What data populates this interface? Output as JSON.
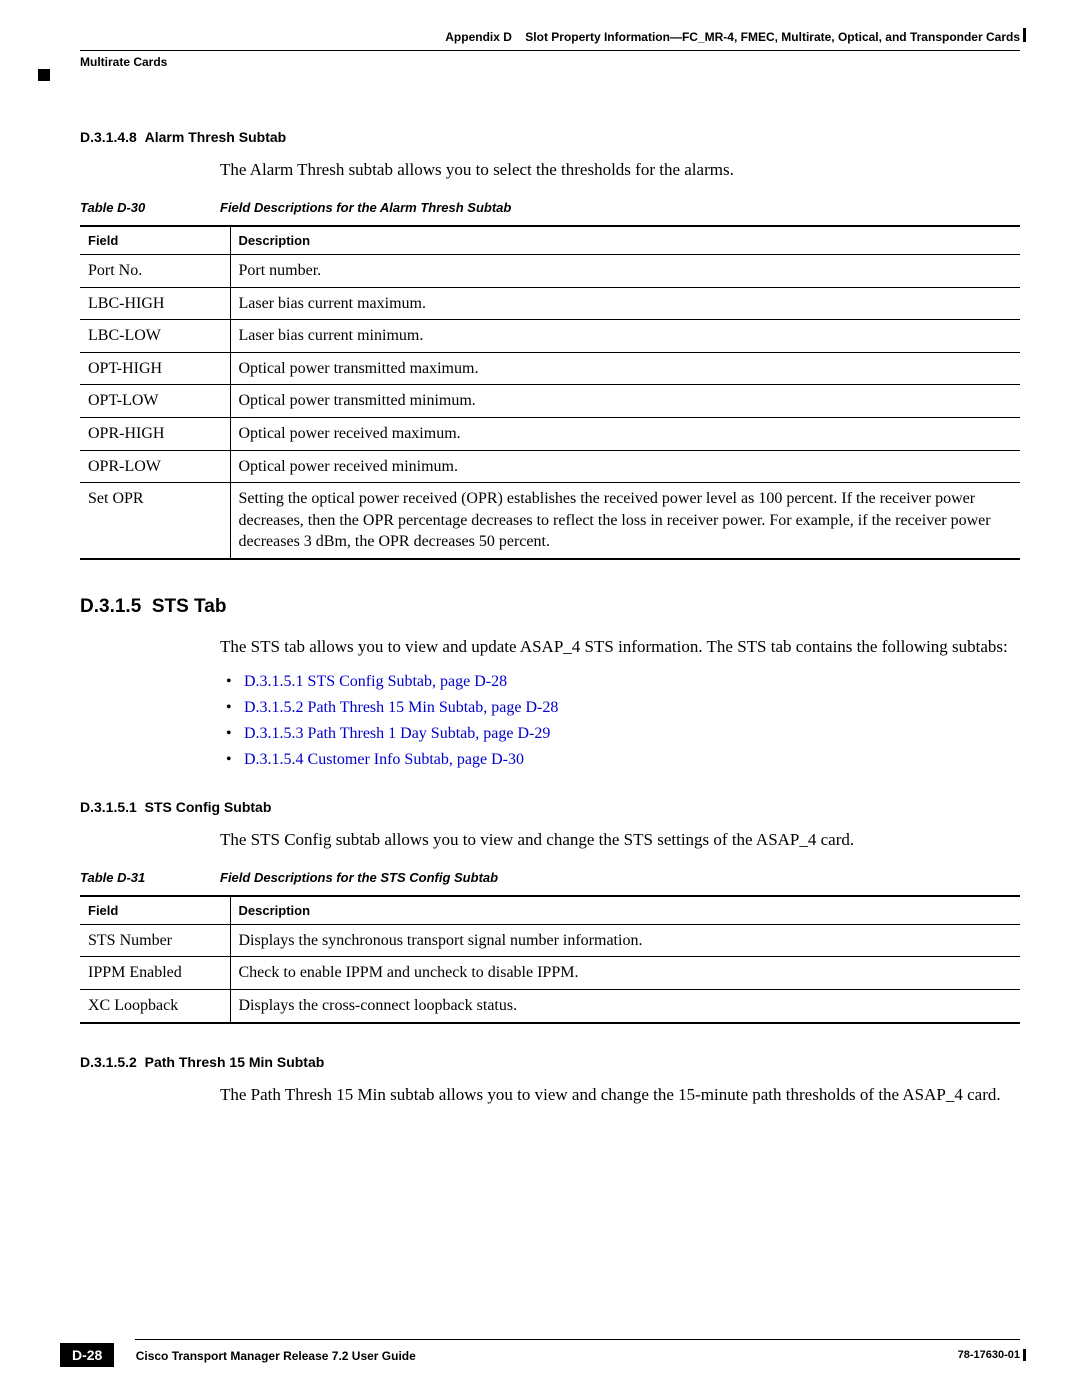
{
  "header": {
    "appendix": "Appendix D",
    "title": "Slot Property Information—FC_MR-4, FMEC, Multirate, Optical, and Transponder Cards",
    "section": "Multirate Cards"
  },
  "sec1": {
    "num": "D.3.1.4.8",
    "title": "Alarm Thresh Subtab",
    "intro": "The Alarm Thresh subtab allows you to select the thresholds for the alarms."
  },
  "table30": {
    "capnum": "Table D-30",
    "captitle": "Field Descriptions for the Alarm Thresh Subtab",
    "col1": "Field",
    "col2": "Description",
    "rows": [
      {
        "f": "Port No.",
        "d": "Port number."
      },
      {
        "f": "LBC-HIGH",
        "d": "Laser bias current maximum."
      },
      {
        "f": "LBC-LOW",
        "d": "Laser bias current minimum."
      },
      {
        "f": "OPT-HIGH",
        "d": "Optical power transmitted maximum."
      },
      {
        "f": "OPT-LOW",
        "d": "Optical power transmitted minimum."
      },
      {
        "f": "OPR-HIGH",
        "d": "Optical power received maximum."
      },
      {
        "f": "OPR-LOW",
        "d": "Optical power received minimum."
      },
      {
        "f": "Set OPR",
        "d": "Setting the optical power received (OPR) establishes the received power level as 100 percent. If the receiver power decreases, then the OPR percentage decreases to reflect the loss in receiver power. For example, if the receiver power decreases 3 dBm, the OPR decreases 50 percent."
      }
    ]
  },
  "sec2": {
    "num": "D.3.1.5",
    "title": "STS Tab",
    "intro": "The STS tab allows you to view and update ASAP_4 STS information. The STS tab contains the following subtabs:"
  },
  "links": [
    "D.3.1.5.1  STS Config Subtab, page D-28",
    "D.3.1.5.2  Path Thresh 15 Min Subtab, page D-28",
    "D.3.1.5.3  Path Thresh 1 Day Subtab, page D-29",
    "D.3.1.5.4  Customer Info Subtab, page D-30"
  ],
  "sec3": {
    "num": "D.3.1.5.1",
    "title": "STS Config Subtab",
    "intro": "The STS Config subtab allows you to view and change the STS settings of the ASAP_4 card."
  },
  "table31": {
    "capnum": "Table D-31",
    "captitle": "Field Descriptions for the STS Config Subtab",
    "col1": "Field",
    "col2": "Description",
    "rows": [
      {
        "f": "STS Number",
        "d": "Displays the synchronous transport signal number information."
      },
      {
        "f": "IPPM Enabled",
        "d": "Check to enable IPPM and uncheck to disable IPPM."
      },
      {
        "f": "XC Loopback",
        "d": "Displays the cross-connect loopback status."
      }
    ]
  },
  "sec4": {
    "num": "D.3.1.5.2",
    "title": "Path Thresh 15 Min Subtab",
    "intro": "The Path Thresh 15 Min subtab allows you to view and change the 15-minute path thresholds of the ASAP_4 card."
  },
  "footer": {
    "pagenum": "D-28",
    "title": "Cisco Transport Manager Release 7.2 User Guide",
    "docnum": "78-17630-01"
  }
}
